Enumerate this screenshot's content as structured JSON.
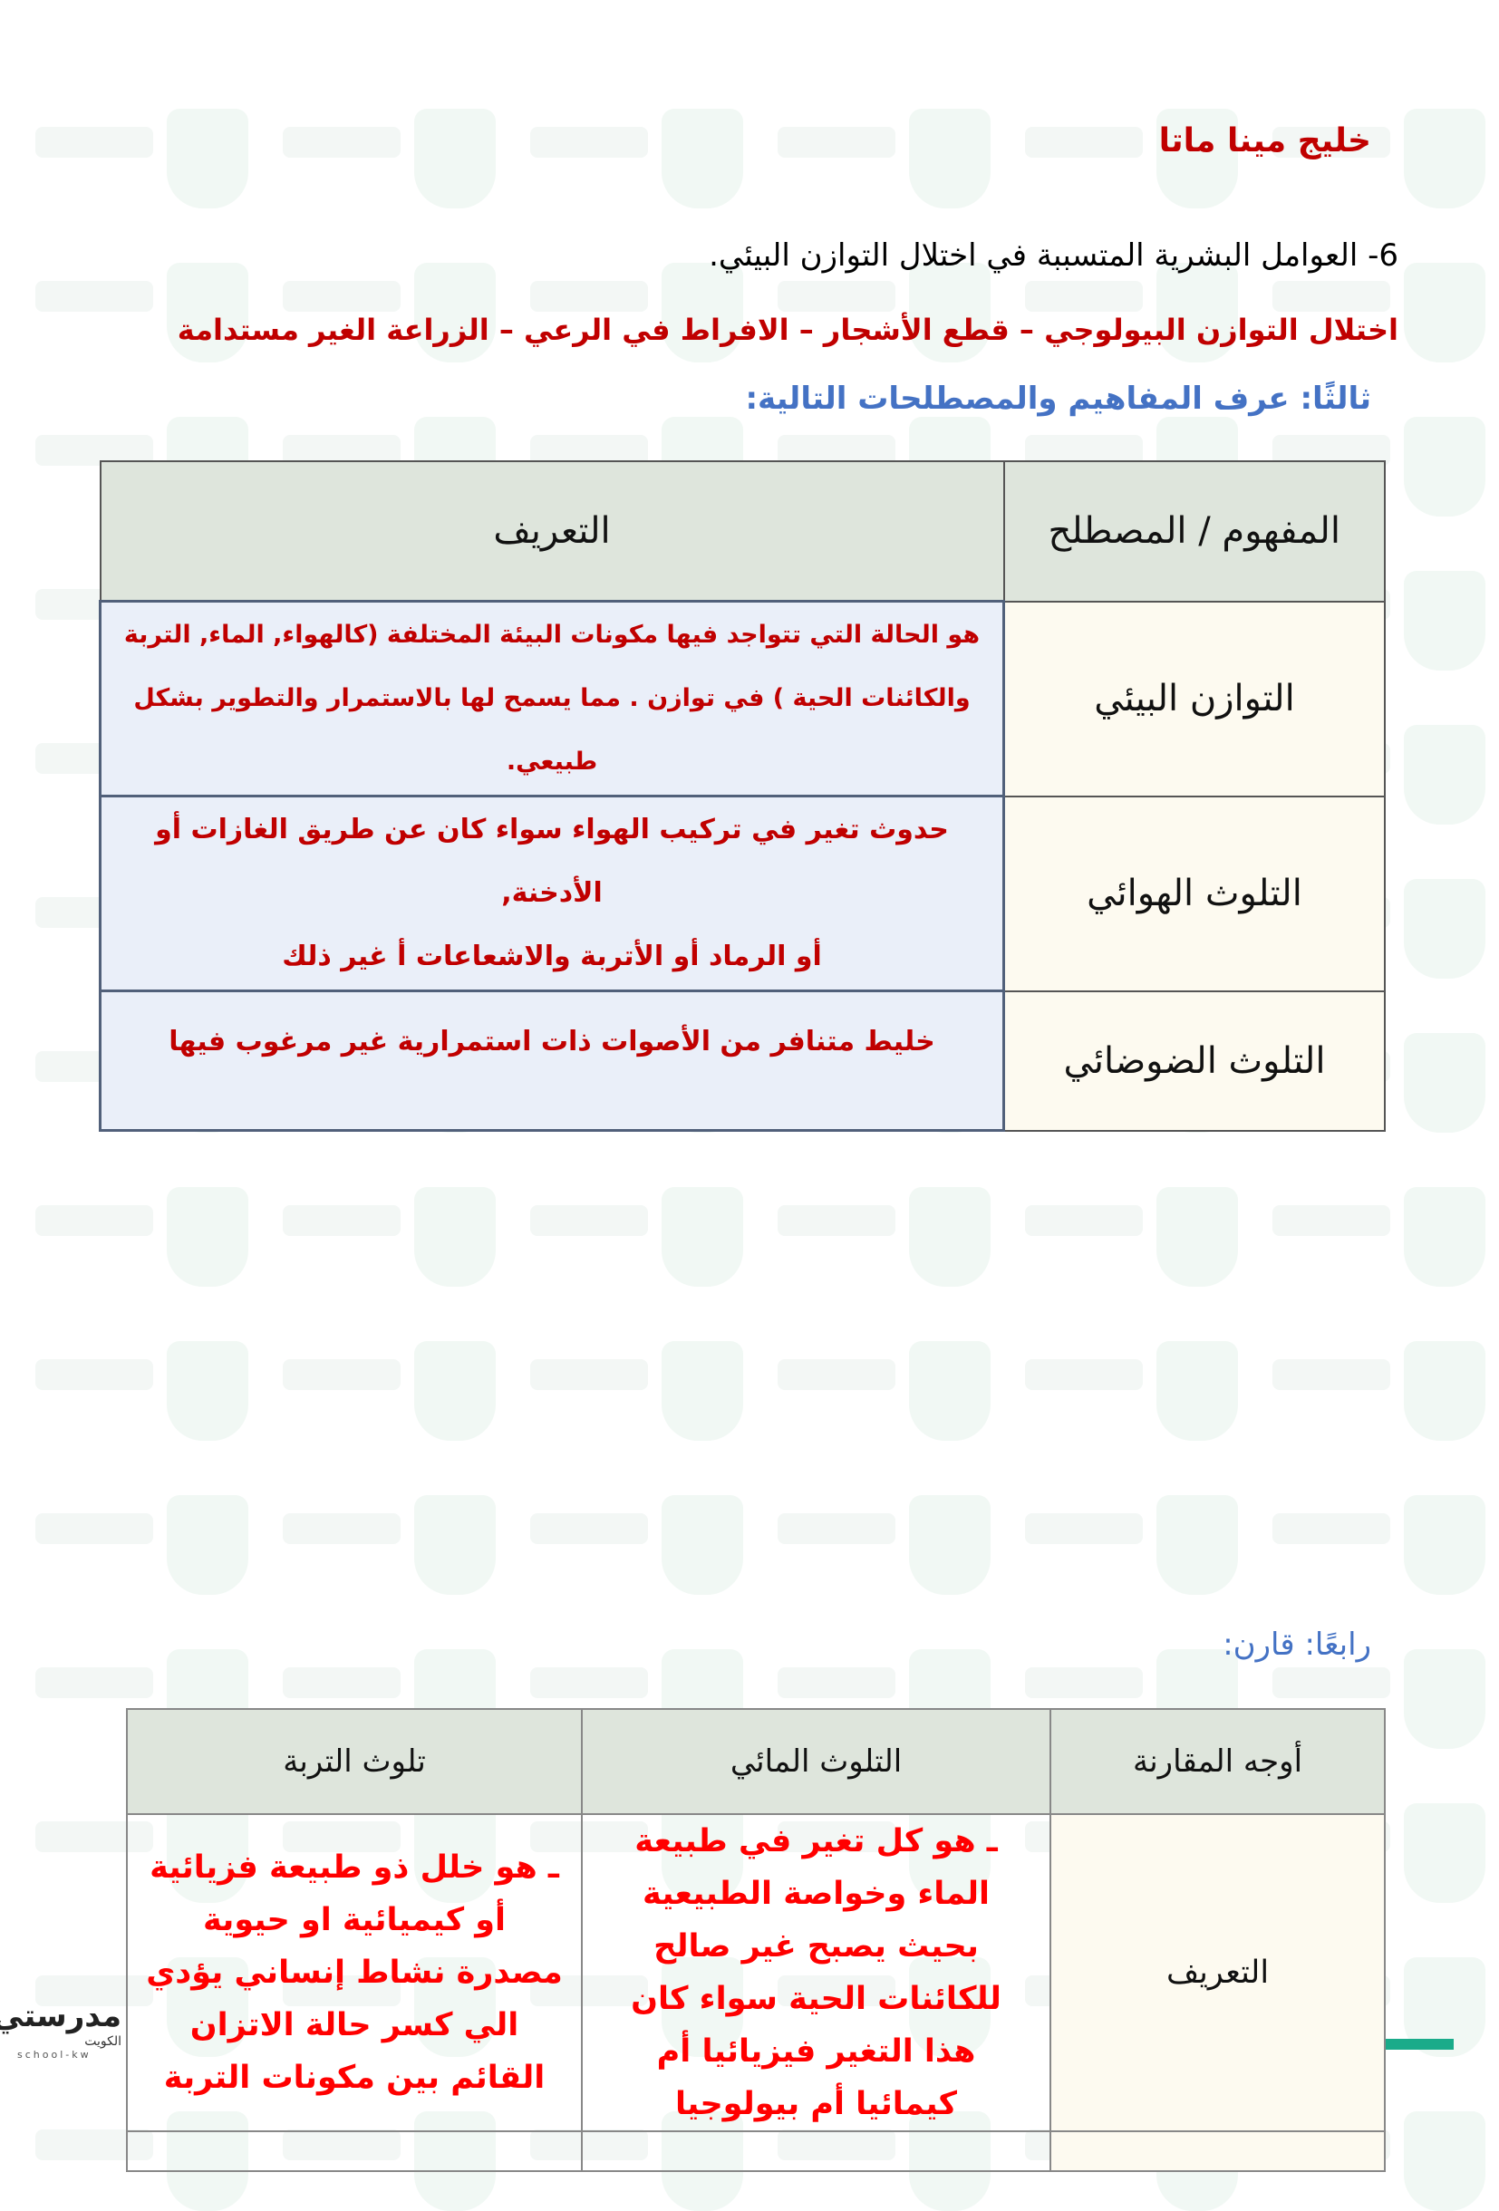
{
  "watermark": "مدرستي",
  "title": "خليج مينا ماتا",
  "question6": "6- العوامل البشرية المتسببة في اختلال التوازن البيئي.",
  "answer6": "اختلال التوازن البيولوجي – قطع الأشجار – الافراط في الرعي – الزراعة الغير مستدامة",
  "section3": "ثالثًا: عرف المفاهيم والمصطلحات التالية:",
  "table1": {
    "headers": {
      "term": "المفهوم / المصطلح",
      "definition": "التعريف"
    },
    "rows": [
      {
        "term": "التوازن البيئي",
        "definition": [
          "هو الحالة التي تتواجد فيها مكونات البيئة المختلفة (كالهواء, الماء, التربة",
          "والكائنات الحية ) في توازن . مما يسمح لها بالاستمرار والتطوير بشكل طبيعي."
        ]
      },
      {
        "term": "التلوث الهوائي",
        "definition": [
          "حدوث تغير في تركيب الهواء سواء كان عن طريق الغازات أو الأدخنة,",
          "أو الرماد أو الأتربة والاشعاعات أ غير ذلك"
        ]
      },
      {
        "term": "التلوث الضوضائي",
        "definition": [
          "خليط متنافر من الأصوات ذات استمرارية غير مرغوب فيها"
        ]
      }
    ]
  },
  "section4": "رابعًا: قارن:",
  "table2": {
    "headers": [
      "أوجه المقارنة",
      "التلوث المائي",
      "تلوث التربة"
    ],
    "rows": [
      {
        "aspect": "التعريف",
        "water": "ـ هو كل تغير في طبيعة الماء وخواصة الطبيعية بحيث يصبح غير صالح للكائنات الحية سواء كان هذا التغير فيزيائيا أم كيمائيا أم بيولوجيا",
        "soil": "ـ هو خلل ذو طبيعة فزيائية أو كيميائية او حيوية مصدرة نشاط إنساني يؤدي الي كسر حالة الاتزان القائم بين مكونات التربة"
      }
    ]
  },
  "logo": {
    "name": "مدرستي",
    "sub": "الكويت",
    "url_text": "school-kw"
  },
  "colors": {
    "red": "#c00000",
    "bright_red": "#ff0000",
    "blue": "#4472c4",
    "header_bg": "#dee5dc",
    "term_bg": "#fdfaf0",
    "def_bg": "#eaeff9",
    "teal": "#1aab8a"
  }
}
